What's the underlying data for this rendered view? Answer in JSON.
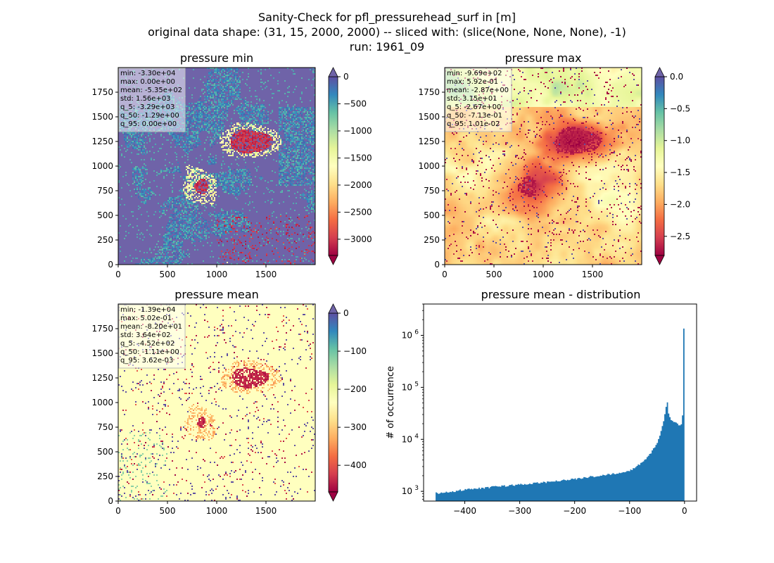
{
  "figure": {
    "title_lines": [
      "Sanity-Check for pfl_pressurehead_surf in [m]",
      "original data shape: (31, 15, 2000, 2000) -- sliced with: (slice(None, None, None), -1)",
      "run: 1961_09"
    ]
  },
  "chart_data": [
    {
      "type": "heatmap",
      "title": "pressure min",
      "colormap": "Spectral",
      "colorbar": {
        "range": [
          -3300,
          0
        ],
        "ticks": [
          0,
          -500,
          -1000,
          -1500,
          -2000,
          -2500,
          -3000
        ],
        "tick_labels": [
          "0",
          "−500",
          "−1000",
          "−1500",
          "−2000",
          "−2500",
          "−3000"
        ],
        "extend": "both",
        "over_color": "#6f63a8"
      },
      "xlim": [
        0,
        2000
      ],
      "ylim": [
        0,
        2000
      ],
      "xticks": [
        "0",
        "500",
        "1000",
        "1500"
      ],
      "yticks": [
        "0",
        "250",
        "500",
        "750",
        "1000",
        "1250",
        "1500",
        "1750"
      ],
      "stats": [
        "min: -3.30e+04",
        "max: 0.00e+00",
        "mean: -5.35e+02",
        "std: 1.56e+03",
        "q_5: -3.29e+03",
        "q_50: -1.29e+00",
        "q_95: 0.00e+00"
      ]
    },
    {
      "type": "heatmap",
      "title": "pressure max",
      "colormap": "Spectral",
      "colorbar": {
        "range": [
          -2.8,
          0
        ],
        "ticks": [
          0,
          -0.5,
          -1.0,
          -1.5,
          -2.0,
          -2.5
        ],
        "tick_labels": [
          "0.0",
          "−0.5",
          "−1.0",
          "−1.5",
          "−2.0",
          "−2.5"
        ],
        "extend": "both",
        "over_color": "#6f63a8"
      },
      "xlim": [
        0,
        2000
      ],
      "ylim": [
        0,
        2000
      ],
      "xticks": [
        "0",
        "500",
        "1000",
        "1500"
      ],
      "yticks": [
        "0",
        "250",
        "500",
        "750",
        "1000",
        "1250",
        "1500",
        "1750"
      ],
      "stats": [
        "min: -9.69e+02",
        "max: 5.92e-01",
        "mean: -2.87e+00",
        "std: 3.15e+01",
        "q_5: -2.67e+00",
        "q_50: -7.13e-01",
        "q_95: 1.01e-02"
      ]
    },
    {
      "type": "heatmap",
      "title": "pressure mean",
      "colormap": "Spectral",
      "colorbar": {
        "range": [
          -470,
          0
        ],
        "ticks": [
          0,
          -100,
          -200,
          -300,
          -400
        ],
        "tick_labels": [
          "0",
          "−100",
          "−200",
          "−300",
          "−400"
        ],
        "extend": "both",
        "over_color": "#6f63a8"
      },
      "xlim": [
        0,
        2000
      ],
      "ylim": [
        0,
        2000
      ],
      "xticks": [
        "0",
        "500",
        "1000",
        "1500"
      ],
      "yticks": [
        "0",
        "250",
        "500",
        "750",
        "1000",
        "1250",
        "1500",
        "1750"
      ],
      "stats": [
        "min: -1.39e+04",
        "max: 5.02e-01",
        "mean: -8.20e+01",
        "std: 3.64e+02",
        "q_5: -4.52e+02",
        "q_50: -1.11e+00",
        "q_95: 3.62e-03"
      ]
    },
    {
      "type": "bar",
      "title": "pressure mean - distribution",
      "ylabel": "# of occurrence",
      "yscale": "log",
      "xlim": [
        -475,
        22
      ],
      "ylim": [
        650,
        4000000
      ],
      "xticks": [
        -400,
        -300,
        -200,
        -100,
        0
      ],
      "xtick_labels": [
        "−400",
        "−300",
        "−200",
        "−100",
        "0"
      ],
      "yticks": [
        1000,
        10000,
        100000,
        1000000
      ],
      "ytick_labels": [
        "10",
        "10",
        "10",
        "10"
      ],
      "ytick_exponents": [
        "3",
        "4",
        "5",
        "6"
      ],
      "bar_color": "#1f77b4",
      "bin_width": 2.3,
      "profile": [
        [
          -452,
          920
        ],
        [
          -440,
          940
        ],
        [
          -420,
          1000
        ],
        [
          -400,
          1080
        ],
        [
          -380,
          1130
        ],
        [
          -360,
          1180
        ],
        [
          -340,
          1240
        ],
        [
          -320,
          1290
        ],
        [
          -300,
          1350
        ],
        [
          -280,
          1400
        ],
        [
          -260,
          1470
        ],
        [
          -240,
          1550
        ],
        [
          -220,
          1640
        ],
        [
          -200,
          1730
        ],
        [
          -180,
          1840
        ],
        [
          -160,
          1970
        ],
        [
          -140,
          2100
        ],
        [
          -120,
          2250
        ],
        [
          -100,
          2500
        ],
        [
          -90,
          2850
        ],
        [
          -80,
          3400
        ],
        [
          -70,
          4200
        ],
        [
          -60,
          5600
        ],
        [
          -50,
          8500
        ],
        [
          -45,
          12000
        ],
        [
          -40,
          19000
        ],
        [
          -36,
          28000
        ],
        [
          -33,
          45000
        ],
        [
          -31,
          50000
        ],
        [
          -29,
          33000
        ],
        [
          -26,
          25000
        ],
        [
          -22,
          22000
        ],
        [
          -18,
          21000
        ],
        [
          -14,
          20000
        ],
        [
          -10,
          19000
        ],
        [
          -7,
          18500
        ],
        [
          -4,
          22000
        ],
        [
          -3,
          40000
        ],
        [
          -2,
          110000
        ],
        [
          -1,
          2600000
        ]
      ]
    }
  ]
}
